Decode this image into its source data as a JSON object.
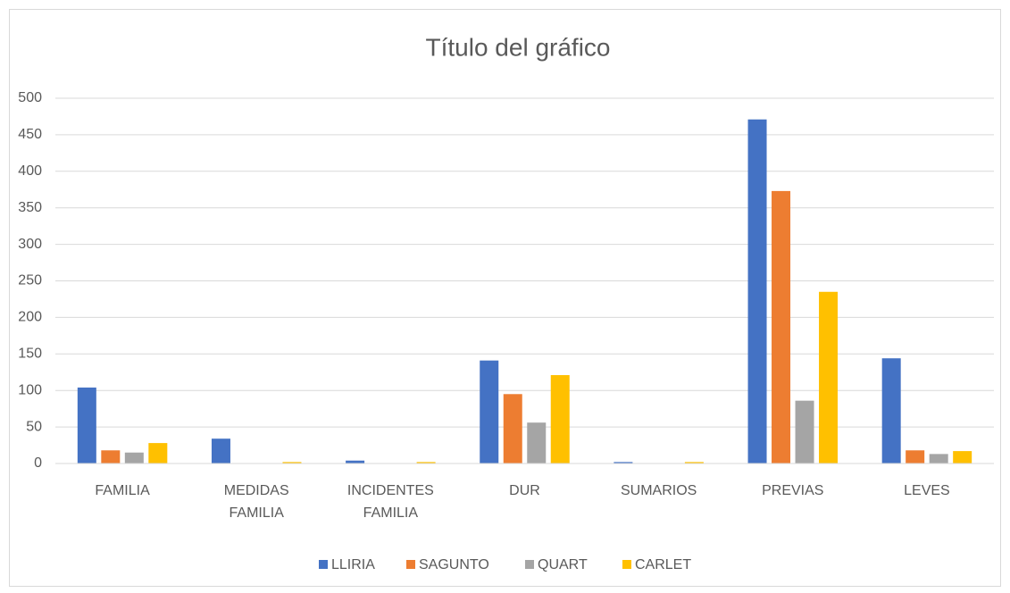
{
  "chart_data": {
    "type": "bar",
    "title": "Título del gráfico",
    "categories": [
      "FAMILIA",
      "MEDIDAS FAMILIA",
      "INCIDENTES FAMILIA",
      "DUR",
      "SUMARIOS",
      "PREVIAS",
      "LEVES"
    ],
    "series": [
      {
        "name": "LLIRIA",
        "color": "#4472c4",
        "values": [
          104,
          34,
          4,
          141,
          2,
          471,
          144
        ]
      },
      {
        "name": "SAGUNTO",
        "color": "#ed7d31",
        "values": [
          18,
          0,
          0,
          95,
          0,
          373,
          18
        ]
      },
      {
        "name": "QUART",
        "color": "#a5a5a5",
        "values": [
          15,
          0,
          0,
          56,
          0,
          86,
          13
        ]
      },
      {
        "name": "CARLET",
        "color": "#ffc000",
        "values": [
          28,
          2,
          2,
          121,
          2,
          235,
          17
        ]
      }
    ],
    "ylim": [
      0,
      500
    ],
    "yticks": [
      0,
      50,
      100,
      150,
      200,
      250,
      300,
      350,
      400,
      450,
      500
    ],
    "grid": true,
    "legend": "bottom"
  }
}
